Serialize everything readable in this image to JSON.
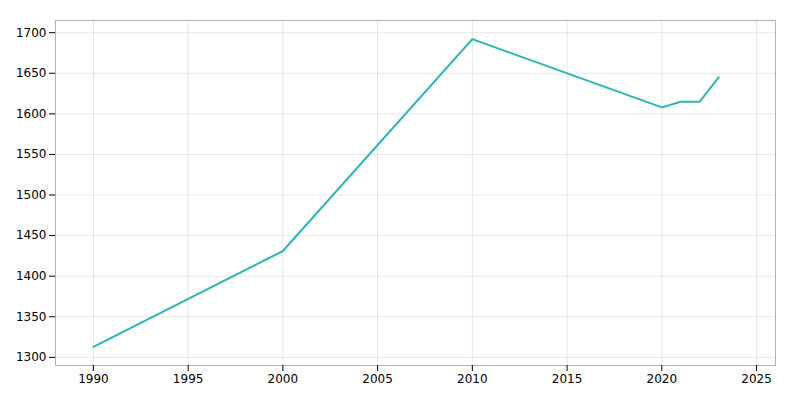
{
  "chart_data": {
    "type": "line",
    "x": [
      1990,
      2000,
      2010,
      2020,
      2021,
      2022,
      2023
    ],
    "values": [
      1313,
      1431,
      1692,
      1608,
      1615,
      1615,
      1645
    ],
    "color": "#2ab5b5",
    "xlim": [
      1988,
      2026
    ],
    "ylim": [
      1290,
      1715
    ],
    "xticks": [
      1990,
      1995,
      2000,
      2005,
      2010,
      2015,
      2020,
      2025
    ],
    "yticks": [
      1300,
      1350,
      1400,
      1450,
      1500,
      1550,
      1600,
      1650,
      1700
    ],
    "grid": true
  }
}
